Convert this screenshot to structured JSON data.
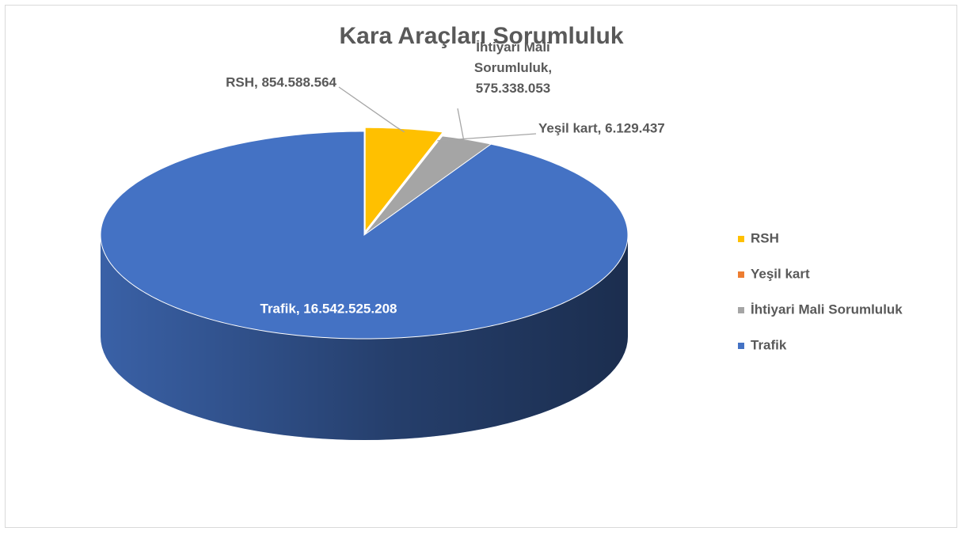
{
  "chart_data": {
    "type": "pie3d",
    "title": "Kara Araçları Sorumluluk",
    "categories": [
      "RSH",
      "Yeşil kart",
      "İhtiyari Mali Sorumluluk",
      "Trafik"
    ],
    "values": [
      854588564,
      6129437,
      575338053,
      16542525208
    ],
    "value_labels": [
      "RSH, 854.588.564",
      "Yeşil kart, 6.129.437",
      "İhtiyari Mali Sorumluluk, 575.338.053",
      "Trafik, 16.542.525.208"
    ],
    "colors": [
      "#FFC000",
      "#ED7D31",
      "#A5A5A5",
      "#4472C4"
    ],
    "legend": "right"
  }
}
